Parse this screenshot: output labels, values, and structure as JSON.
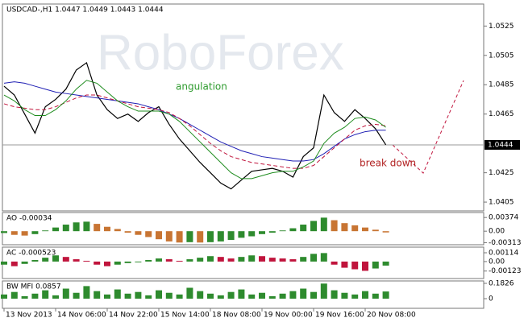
{
  "watermark": "RoboForex",
  "chart_data": [
    {
      "type": "line",
      "title": "USDCAD-,H1  1.0447 1.0449 1.0443 1.0444",
      "ylim": [
        1.0399,
        1.054
      ],
      "yticks": [
        1.0405,
        1.0425,
        1.0465,
        1.0485,
        1.0505,
        1.0525
      ],
      "price_label": 1.0444,
      "series": [
        {
          "color": "#000000",
          "values": [
            1.0484,
            1.0478,
            1.0465,
            1.0452,
            1.047,
            1.0475,
            1.0482,
            1.0495,
            1.05,
            1.0478,
            1.0468,
            1.0462,
            1.0465,
            1.046,
            1.0466,
            1.047,
            1.0458,
            1.0448,
            1.044,
            1.0432,
            1.0425,
            1.0418,
            1.0414,
            1.042,
            1.0426,
            1.0427,
            1.0428,
            1.0426,
            1.0422,
            1.0436,
            1.0442,
            1.0478,
            1.0466,
            1.046,
            1.0468,
            1.0462,
            1.0455,
            1.0444
          ]
        },
        {
          "color": "#1f1fb4",
          "values": [
            1.0486,
            1.0487,
            1.0486,
            1.0484,
            1.0482,
            1.048,
            1.0479,
            1.0478,
            1.0477,
            1.0476,
            1.0475,
            1.0474,
            1.0473,
            1.0472,
            1.047,
            1.0468,
            1.0465,
            1.0462,
            1.0458,
            1.0454,
            1.045,
            1.0446,
            1.0443,
            1.044,
            1.0438,
            1.0436,
            1.0435,
            1.0434,
            1.0433,
            1.0433,
            1.0434,
            1.0438,
            1.0443,
            1.0448,
            1.0451,
            1.0453,
            1.0454,
            1.0454
          ]
        },
        {
          "color": "#c0143c",
          "dashed": true,
          "values": [
            1.0472,
            1.047,
            1.0469,
            1.0468,
            1.0468,
            1.047,
            1.0473,
            1.0476,
            1.0478,
            1.0478,
            1.0476,
            1.0474,
            1.0472,
            1.047,
            1.0469,
            1.0468,
            1.0466,
            1.0462,
            1.0457,
            1.0451,
            1.0445,
            1.044,
            1.0436,
            1.0434,
            1.0432,
            1.0431,
            1.043,
            1.0429,
            1.0428,
            1.0428,
            1.043,
            1.0436,
            1.0442,
            1.0448,
            1.0454,
            1.0457,
            1.0458,
            1.0457
          ]
        },
        {
          "color": "#1e8c1e",
          "values": [
            1.0478,
            1.0474,
            1.0468,
            1.0464,
            1.0464,
            1.0468,
            1.0474,
            1.0482,
            1.0488,
            1.0486,
            1.048,
            1.0474,
            1.047,
            1.0467,
            1.0467,
            1.0467,
            1.0465,
            1.046,
            1.0453,
            1.0446,
            1.0439,
            1.0432,
            1.0425,
            1.0421,
            1.0421,
            1.0423,
            1.0425,
            1.0426,
            1.0426,
            1.0429,
            1.0433,
            1.0445,
            1.0452,
            1.0456,
            1.0462,
            1.0463,
            1.0461,
            1.0456
          ]
        }
      ],
      "annotations": [
        {
          "text": "angulation",
          "color": "#2e9b2e"
        },
        {
          "text": "break down",
          "color": "#b22222"
        }
      ]
    },
    {
      "type": "bar",
      "title": "AO -0.00034",
      "ylim": [
        -0.0037,
        0.0051
      ],
      "yticks": [
        0.00374,
        {
          "value": 0,
          "label": "0.00"
        },
        -0.00313
      ],
      "up_color": "#2e8b2e",
      "down_color": "#c87533",
      "values": [
        -0.0005,
        -0.001,
        -0.0012,
        -0.0008,
        0.0002,
        0.001,
        0.0018,
        0.0024,
        0.0026,
        0.002,
        0.0012,
        0.0006,
        -0.0004,
        -0.001,
        -0.0016,
        -0.0022,
        -0.0028,
        -0.0031,
        -0.003,
        -0.0031,
        -0.003,
        -0.0028,
        -0.0024,
        -0.0018,
        -0.0014,
        -0.0008,
        -0.0004,
        0.0002,
        0.0008,
        0.0018,
        0.0028,
        0.0037,
        0.003,
        0.0022,
        0.0016,
        0.001,
        0.0004,
        -0.00034
      ]
    },
    {
      "type": "bar",
      "title": "AC -0.000523",
      "ylim": [
        -0.0022,
        0.00187
      ],
      "yticks": [
        0.00114,
        {
          "value": 0,
          "label": "0.00"
        },
        -0.00123
      ],
      "up_color": "#2e8b2e",
      "down_color": "#c0143c",
      "values": [
        -0.0004,
        -0.0006,
        -0.0003,
        0.0002,
        0.0005,
        0.0008,
        0.0006,
        0.0003,
        0.0001,
        -0.0004,
        -0.0006,
        -0.0004,
        -0.0002,
        -0.0001,
        0.0002,
        0.0004,
        0.0003,
        0.0001,
        0.0003,
        0.0005,
        0.0007,
        0.0006,
        0.0004,
        0.0006,
        0.0008,
        0.0007,
        0.0005,
        0.0004,
        0.0003,
        0.0006,
        0.001,
        0.0011,
        -0.0004,
        -0.0008,
        -0.001,
        -0.0012,
        -0.0009,
        -0.000523
      ]
    },
    {
      "type": "bar",
      "title": "BW MFI 0.0857",
      "ylim": [
        -0.115,
        0.2114
      ],
      "yticks": [
        0.1826,
        0
      ],
      "color": "#2e8b2e",
      "categories": [
        "13 Nov 2013",
        null,
        null,
        null,
        null,
        "14 Nov 06:00",
        null,
        null,
        null,
        null,
        "14 Nov 22:00",
        null,
        null,
        null,
        null,
        "15 Nov 14:00",
        null,
        null,
        null,
        null,
        "18 Nov 08:00",
        null,
        null,
        null,
        null,
        "19 Nov 00:00",
        null,
        null,
        null,
        null,
        "19 Nov 16:00",
        null,
        null,
        null,
        null,
        "20 Nov 08:00",
        null,
        null
      ],
      "values": [
        0.05,
        0.08,
        0.03,
        0.06,
        0.1,
        0.04,
        0.12,
        0.07,
        0.15,
        0.09,
        0.05,
        0.11,
        0.06,
        0.08,
        0.04,
        0.1,
        0.07,
        0.05,
        0.13,
        0.09,
        0.06,
        0.04,
        0.08,
        0.11,
        0.05,
        0.07,
        0.03,
        0.06,
        0.09,
        0.12,
        0.08,
        0.18,
        0.1,
        0.07,
        0.05,
        0.09,
        0.06,
        0.0857
      ]
    }
  ]
}
